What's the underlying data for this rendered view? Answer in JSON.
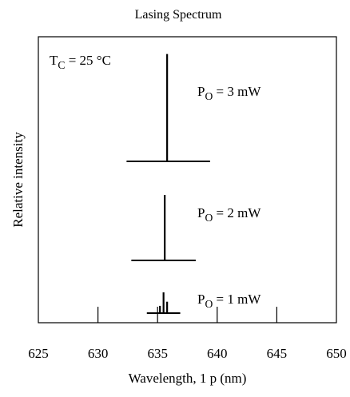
{
  "chart_data": {
    "type": "line",
    "title": "Lasing Spectrum",
    "xlabel": "Wavelength,   1 p (nm)",
    "ylabel": "Relative intensity",
    "xlim": [
      625,
      650
    ],
    "x_ticks": [
      625,
      630,
      635,
      640,
      645,
      650
    ],
    "x_tick_labels": [
      "625",
      "630",
      "635",
      "640",
      "645",
      "650"
    ],
    "grid": false,
    "condition": {
      "symbol": "T",
      "subscript": "C",
      "value": "= 25 °C"
    },
    "spectra": [
      {
        "power": {
          "symbol": "P",
          "subscript": "O",
          "value": "= 3 mW"
        },
        "baseline": {
          "from": 632.4,
          "to": 639.4
        },
        "peaks": [
          {
            "x": 635.8,
            "height": 0.96
          }
        ]
      },
      {
        "power": {
          "symbol": "P",
          "subscript": "O",
          "value": "= 2 mW"
        },
        "baseline": {
          "from": 632.8,
          "to": 638.2
        },
        "peaks": [
          {
            "x": 635.6,
            "height": 1.0
          }
        ]
      },
      {
        "power": {
          "symbol": "P",
          "subscript": "O",
          "value": "= 1 mW"
        },
        "baseline": {
          "from": 634.1,
          "to": 636.9
        },
        "peaks": [
          {
            "x": 635.2,
            "height": 0.35
          },
          {
            "x": 635.5,
            "height": 1.0
          },
          {
            "x": 635.8,
            "height": 0.55
          }
        ]
      }
    ]
  }
}
